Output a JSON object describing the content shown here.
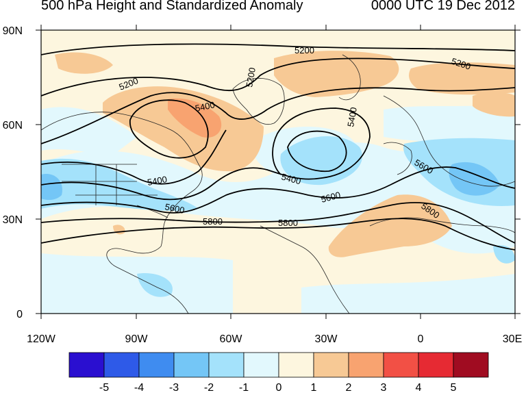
{
  "title": "500 hPa Height and Standardized Anomaly",
  "timestamp": "0000 UTC 19 Dec 2012",
  "lat_labels": [
    "90N",
    "60N",
    "30N",
    "0"
  ],
  "lon_labels": [
    "120W",
    "90W",
    "60W",
    "30W",
    "0",
    "30E"
  ],
  "colorbar": {
    "labels": [
      "-5",
      "-4",
      "-3",
      "-2",
      "-1",
      "0",
      "1",
      "2",
      "3",
      "4",
      "5"
    ],
    "colors": [
      "#2a0fd0",
      "#2e5ae8",
      "#3f8cf0",
      "#74c6f6",
      "#a4e2fb",
      "#e2f8fd",
      "#fdf6df",
      "#f7c995",
      "#f8a370",
      "#f25045",
      "#e62a33",
      "#a00c21"
    ]
  },
  "contour_labels": [
    "5200",
    "5200",
    "5200",
    "5200",
    "5400",
    "5400",
    "5400",
    "5400",
    "5600",
    "5600",
    "5600",
    "5800",
    "5800",
    "5800"
  ]
}
